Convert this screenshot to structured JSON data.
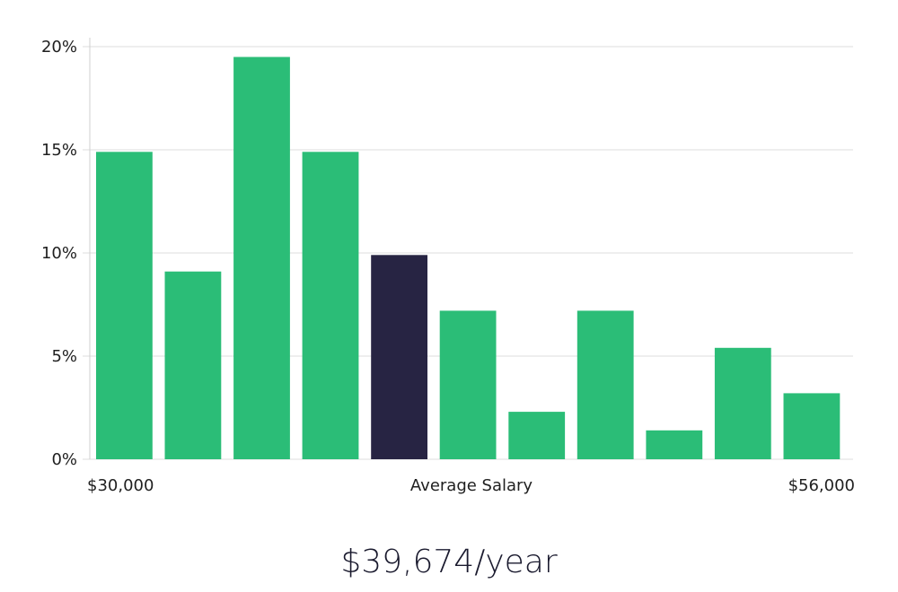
{
  "chart_data": {
    "type": "bar",
    "title": "",
    "xlabel": "Average Salary",
    "ylabel": "",
    "x_range_labels": {
      "min": "$30,000",
      "max": "$56,000"
    },
    "y_ticks": [
      "0%",
      "5%",
      "10%",
      "15%",
      "20%"
    ],
    "ylim": [
      0,
      20
    ],
    "values": [
      14.9,
      9.1,
      19.5,
      14.9,
      9.9,
      7.2,
      2.3,
      7.2,
      1.4,
      5.4,
      3.2
    ],
    "highlight_index": 4,
    "grid": true,
    "legend": "none",
    "colors": {
      "bar": "#2bbd77",
      "highlight": "#272443",
      "grid": "#dedede"
    }
  },
  "summary": {
    "salary": "$39,674/year"
  }
}
